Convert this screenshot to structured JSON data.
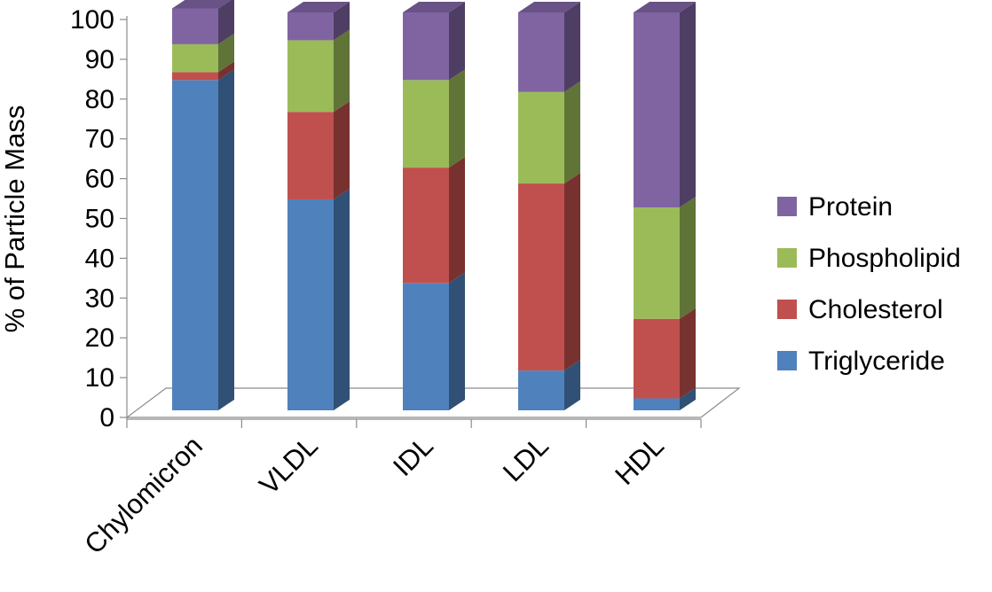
{
  "chart_data": {
    "type": "bar",
    "stacked": true,
    "three_d": true,
    "categories": [
      "Chylomicron",
      "VLDL",
      "IDL",
      "LDL",
      "HDL"
    ],
    "series": [
      {
        "name": "Triglyceride",
        "values": [
          83,
          53,
          32,
          10,
          3
        ],
        "color": "#4F81BD"
      },
      {
        "name": "Cholesterol",
        "values": [
          2,
          22,
          29,
          47,
          20
        ],
        "color": "#C0504D"
      },
      {
        "name": "Phospholipid",
        "values": [
          7,
          18,
          22,
          23,
          28
        ],
        "color": "#9BBB59"
      },
      {
        "name": "Protein",
        "values": [
          9,
          7,
          17,
          20,
          49
        ],
        "color": "#8064A2"
      }
    ],
    "ylabel": "% of Particle Mass",
    "xlabel": "",
    "ylim": [
      0,
      100
    ],
    "yticks": [
      0,
      10,
      20,
      30,
      40,
      50,
      60,
      70,
      80,
      90,
      100
    ],
    "grid": false,
    "legend_position": "right"
  }
}
